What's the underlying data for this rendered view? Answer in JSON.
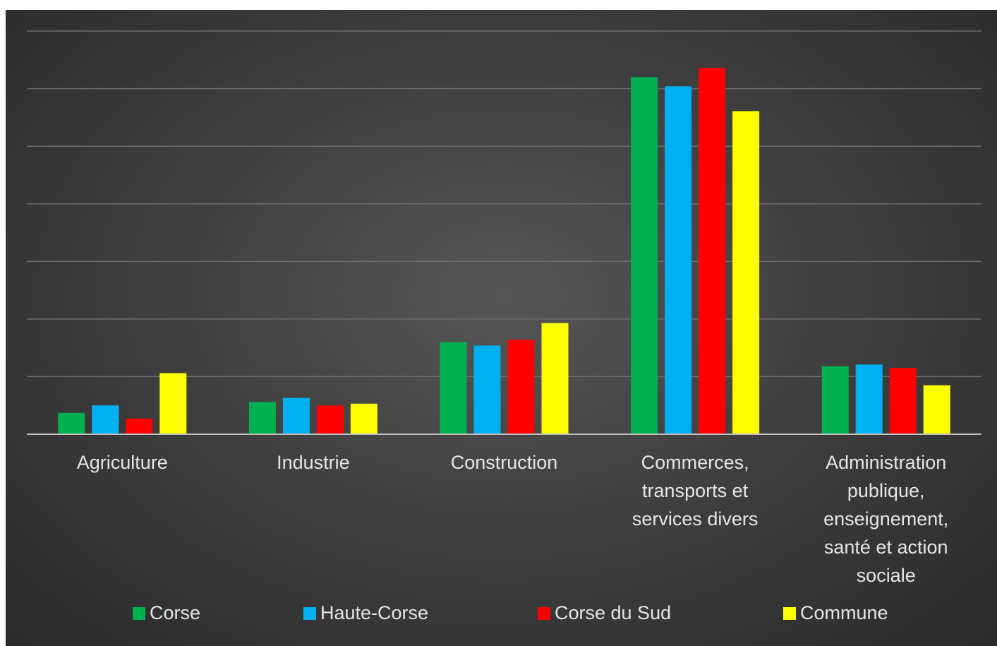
{
  "chart_data": {
    "type": "bar",
    "categories": [
      [
        "Agriculture"
      ],
      [
        "Industrie"
      ],
      [
        "Construction"
      ],
      [
        "Commerces,",
        "transports et",
        "services divers"
      ],
      [
        "Administration",
        "publique,",
        "enseignement,",
        "santé et action",
        "sociale"
      ]
    ],
    "series": [
      {
        "name": "Corse",
        "color": "#00b050",
        "values": [
          3.7,
          5.6,
          16.0,
          62.0,
          11.8
        ]
      },
      {
        "name": "Haute-Corse",
        "color": "#00b0f0",
        "values": [
          5.0,
          6.3,
          15.4,
          60.4,
          12.1
        ]
      },
      {
        "name": "Corse du Sud",
        "color": "#ff0000",
        "values": [
          2.7,
          5.0,
          16.4,
          63.6,
          11.5
        ]
      },
      {
        "name": "Commune",
        "color": "#ffff00",
        "values": [
          10.6,
          5.3,
          19.3,
          56.1,
          8.5
        ]
      }
    ],
    "ylim": [
      0,
      70
    ],
    "gridlines": [
      0,
      10,
      20,
      30,
      40,
      50,
      60,
      70
    ],
    "grid": true,
    "legend_position": "bottom"
  }
}
